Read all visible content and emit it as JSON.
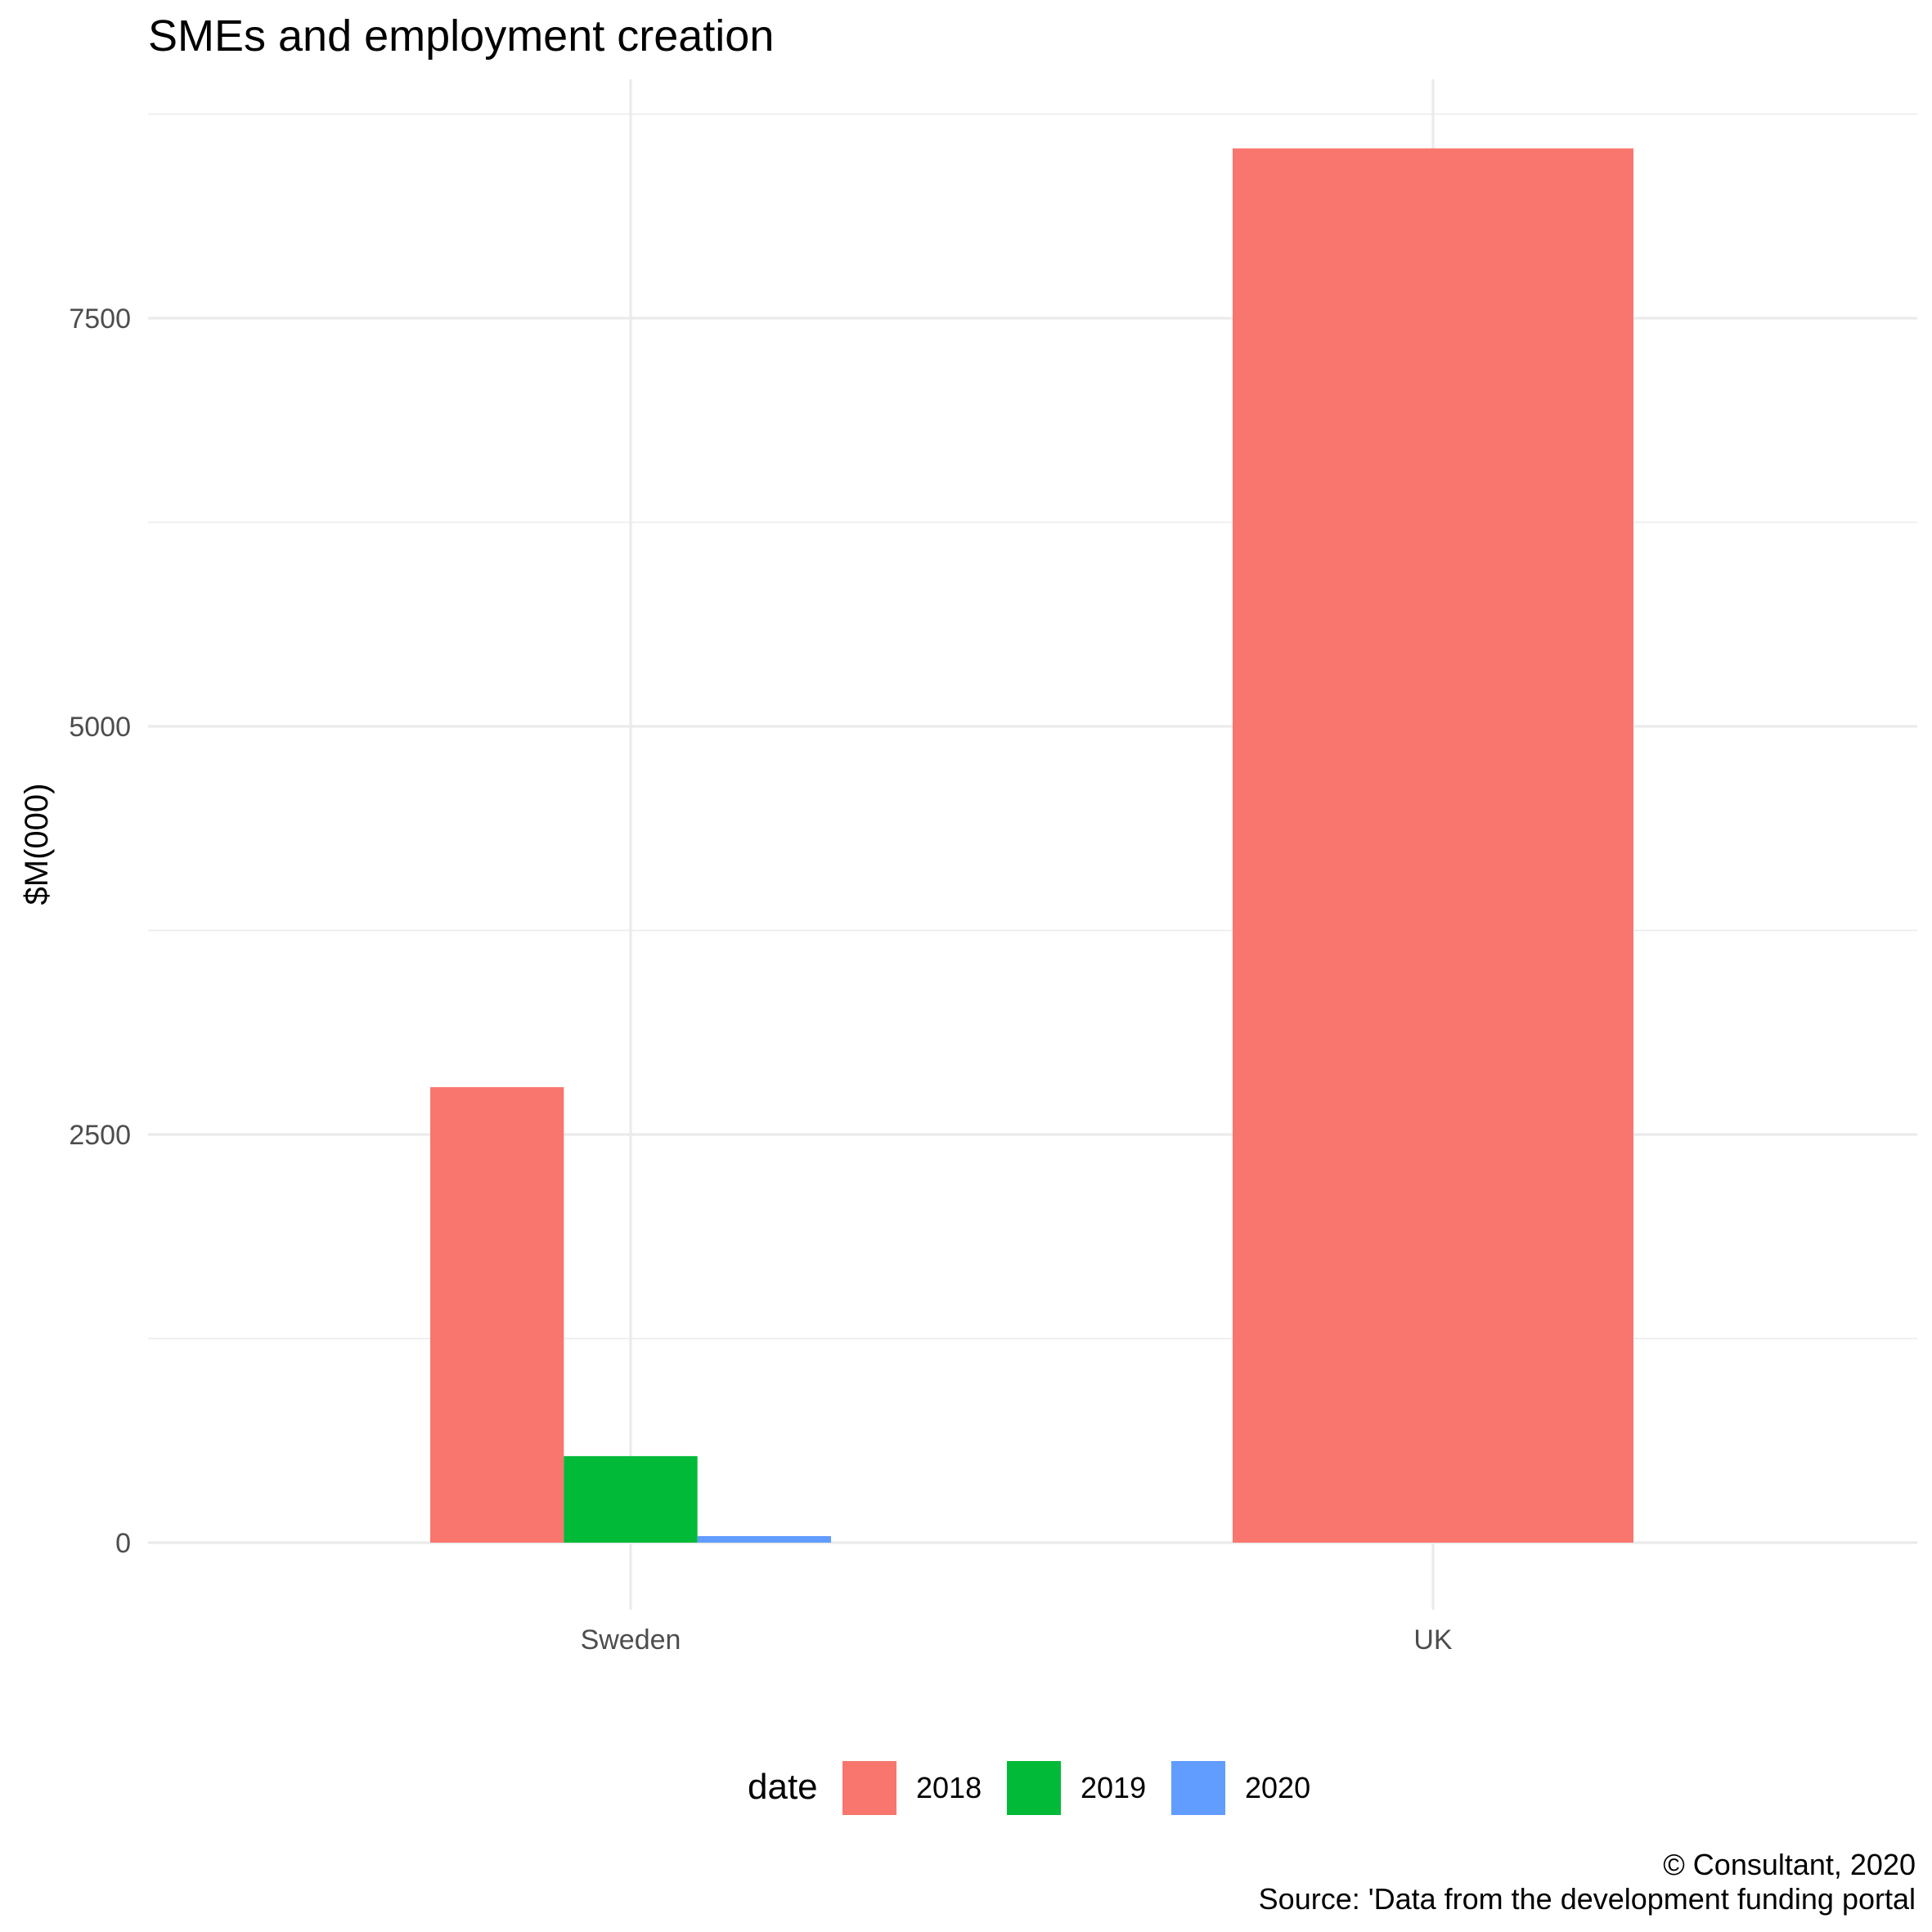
{
  "chart_data": {
    "type": "bar",
    "title": "SMEs and employment creation",
    "xlabel": "",
    "ylabel": "$M(000)",
    "categories": [
      "Sweden",
      "UK"
    ],
    "yticks": [
      0,
      2500,
      5000,
      7500
    ],
    "ylim": [
      0,
      8650
    ],
    "grid": true,
    "legend": {
      "title": "date",
      "position": "bottom"
    },
    "series": [
      {
        "name": "2018",
        "color": "#F8766D",
        "values": [
          2790,
          8540
        ]
      },
      {
        "name": "2019",
        "color": "#00BA38",
        "values": [
          530,
          null
        ]
      },
      {
        "name": "2020",
        "color": "#619CFF",
        "values": [
          40,
          null
        ]
      }
    ],
    "caption": [
      "© Consultant, 2020",
      "Source: 'Data from the development funding portal"
    ]
  }
}
